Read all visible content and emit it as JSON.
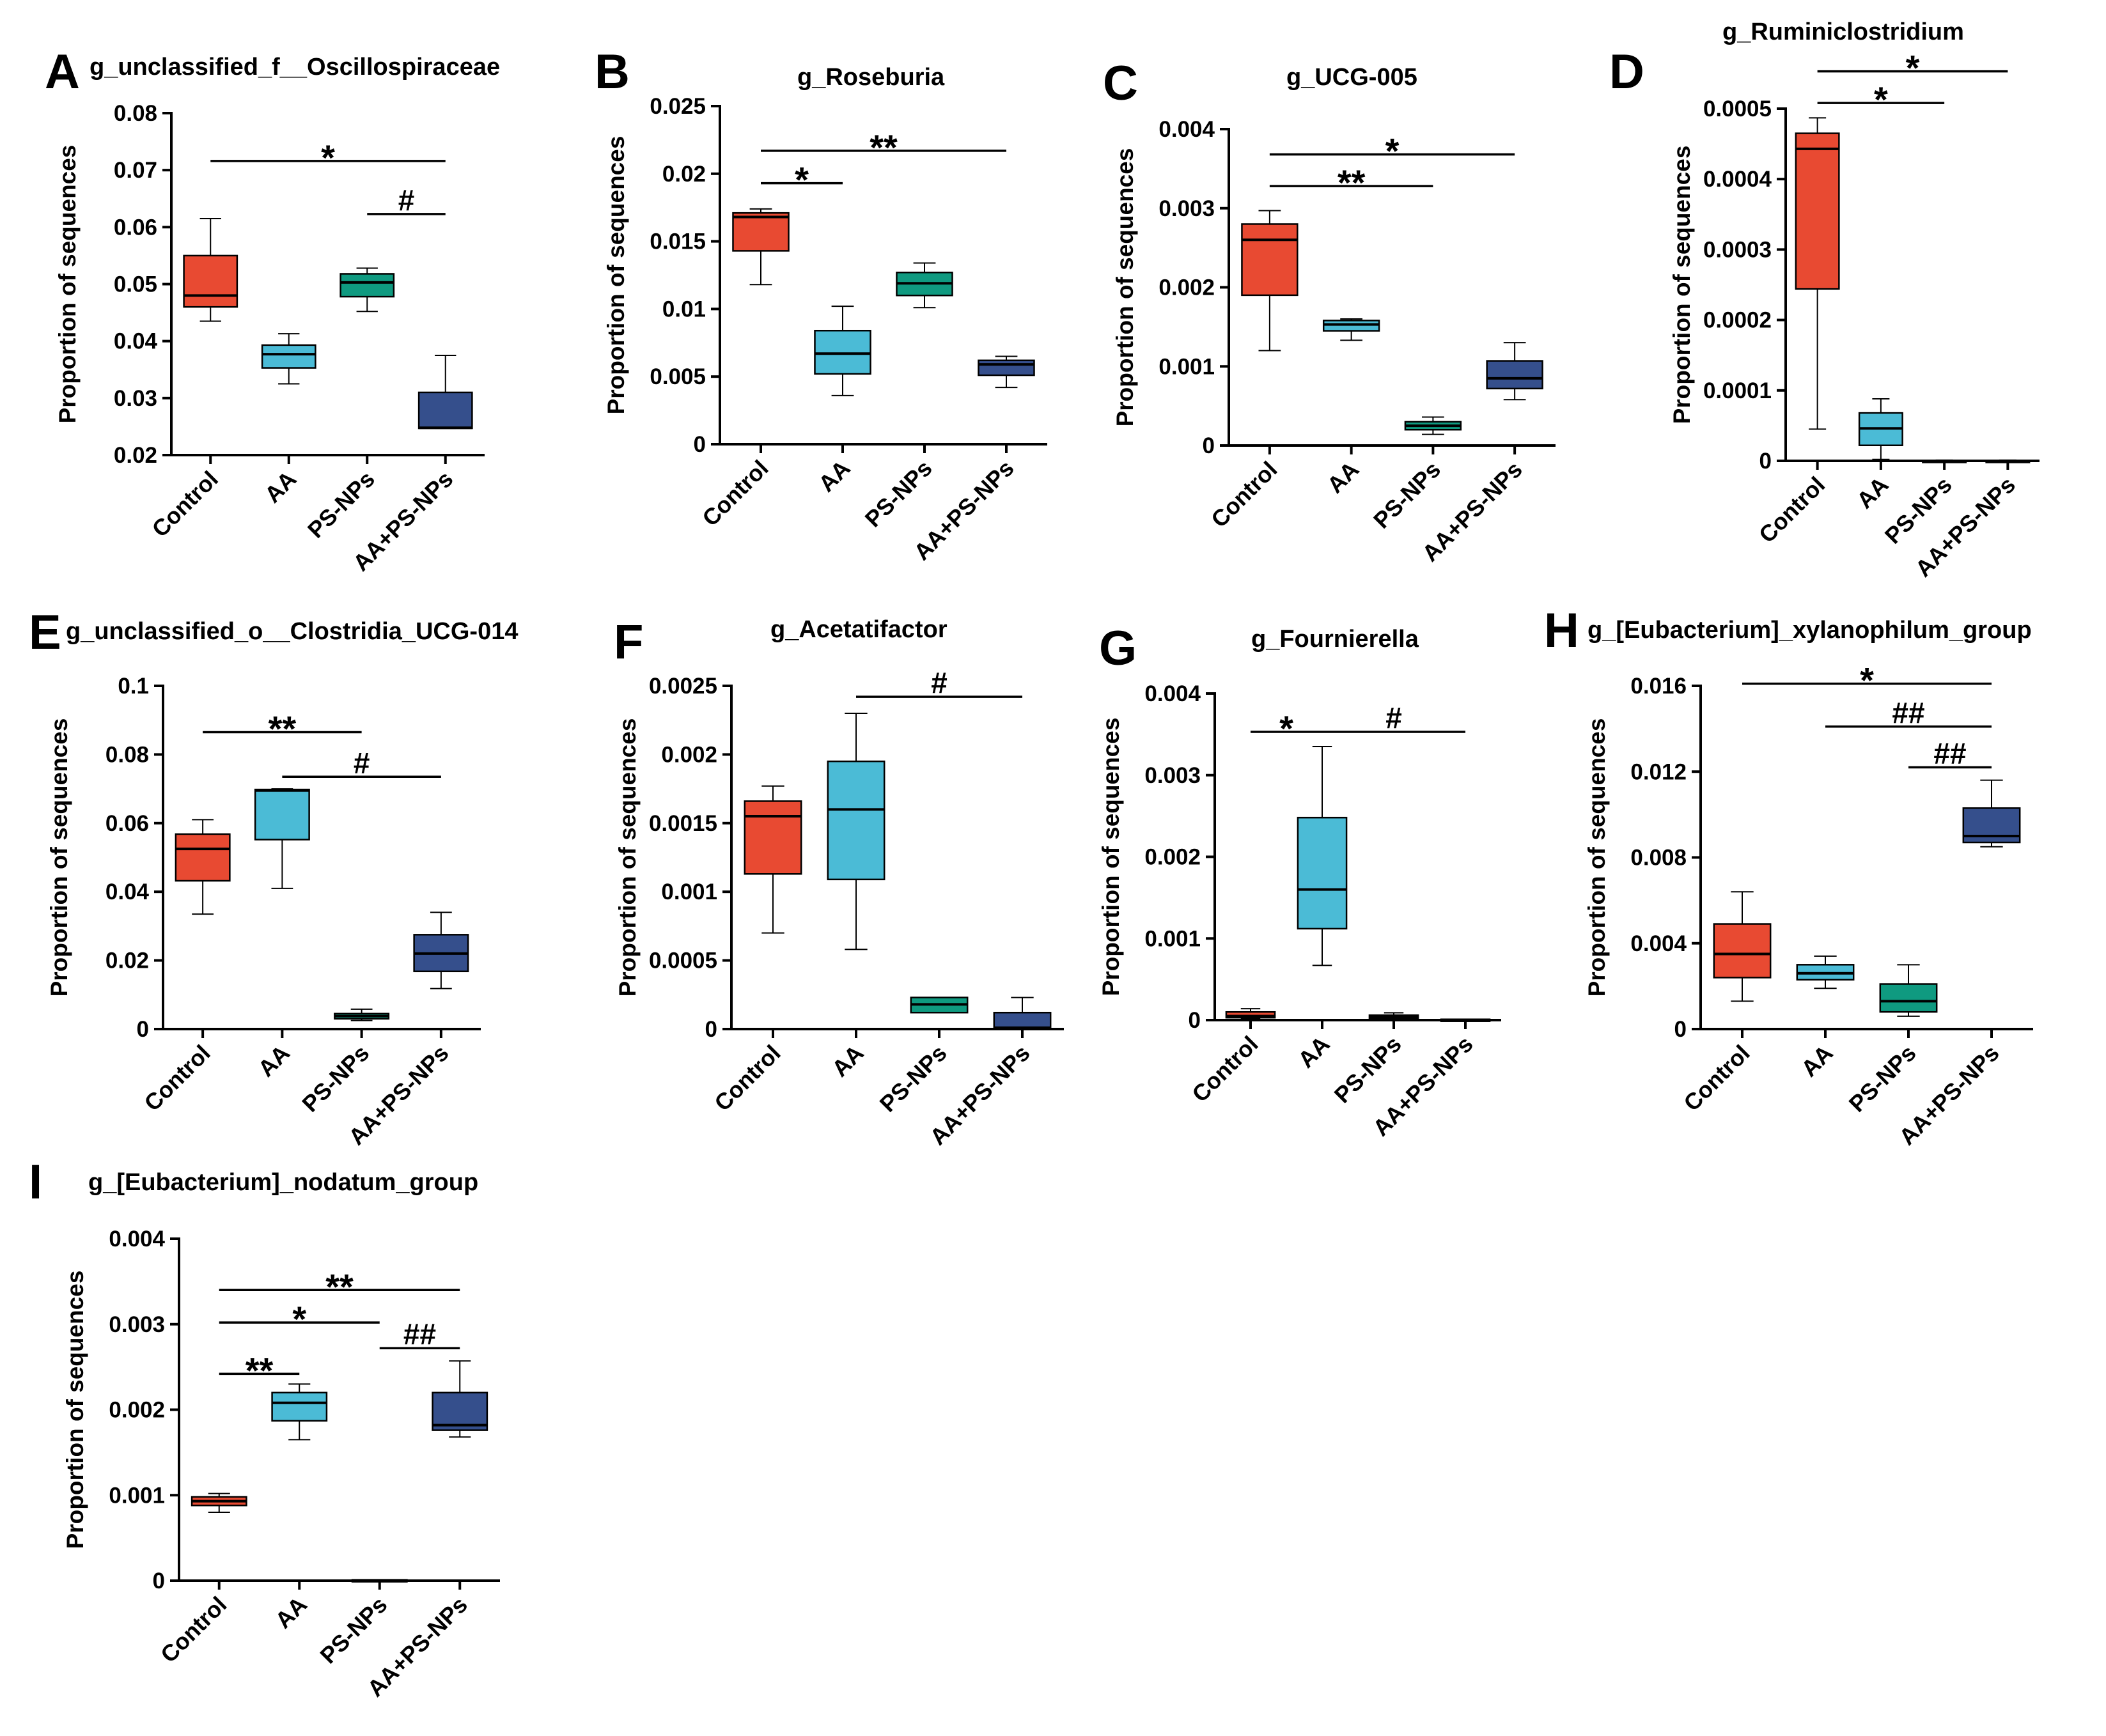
{
  "figure_colors": {
    "Control": "#e84a32",
    "AA": "#4bbbd6",
    "PS-NPs": "#0f9a80",
    "AA+PS-NPs": "#354f8c",
    "axis": "#000000"
  },
  "chart_data": [
    {
      "panel": "A",
      "type": "box",
      "title": "g_unclassified_f__Oscillospiraceae",
      "ylabel": "Proportion of sequences",
      "ylim": [
        0.02,
        0.08
      ],
      "yticks": [
        {
          "v": 0.02,
          "t": "0.02"
        },
        {
          "v": 0.03,
          "t": "0.03"
        },
        {
          "v": 0.04,
          "t": "0.04"
        },
        {
          "v": 0.05,
          "t": "0.05"
        },
        {
          "v": 0.06,
          "t": "0.06"
        },
        {
          "v": 0.07,
          "t": "0.07"
        },
        {
          "v": 0.08,
          "t": "0.08"
        }
      ],
      "categories": [
        "Control",
        "AA",
        "PS-NPs",
        "AA+PS-NPs"
      ],
      "boxes": [
        {
          "group": "Control",
          "min": 0.0435,
          "q1": 0.046,
          "median": 0.048,
          "q3": 0.055,
          "max": 0.0615
        },
        {
          "group": "AA",
          "min": 0.0325,
          "q1": 0.0353,
          "median": 0.0377,
          "q3": 0.0393,
          "max": 0.0413
        },
        {
          "group": "PS-NPs",
          "min": 0.0452,
          "q1": 0.0478,
          "median": 0.0503,
          "q3": 0.0518,
          "max": 0.0528
        },
        {
          "group": "AA+PS-NPs",
          "min": 0.0247,
          "q1": 0.0247,
          "median": 0.0248,
          "q3": 0.031,
          "max": 0.0375
        }
      ],
      "significance": [
        {
          "from": 0,
          "to": 3,
          "level": 0.0716,
          "label": "*"
        },
        {
          "from": 2,
          "to": 3,
          "level": 0.0623,
          "label": "#"
        }
      ]
    },
    {
      "panel": "B",
      "type": "box",
      "title": "g_Roseburia",
      "ylabel": "Proportion of sequences",
      "ylim": [
        0,
        0.025
      ],
      "yticks": [
        {
          "v": 0,
          "t": "0"
        },
        {
          "v": 0.005,
          "t": "0.005"
        },
        {
          "v": 0.01,
          "t": "0.01"
        },
        {
          "v": 0.015,
          "t": "0.015"
        },
        {
          "v": 0.02,
          "t": "0.02"
        },
        {
          "v": 0.025,
          "t": "0.025"
        }
      ],
      "categories": [
        "Control",
        "AA",
        "PS-NPs",
        "AA+PS-NPs"
      ],
      "boxes": [
        {
          "group": "Control",
          "min": 0.0118,
          "q1": 0.0143,
          "median": 0.0168,
          "q3": 0.0171,
          "max": 0.0174
        },
        {
          "group": "AA",
          "min": 0.0036,
          "q1": 0.0052,
          "median": 0.0067,
          "q3": 0.0084,
          "max": 0.0102
        },
        {
          "group": "PS-NPs",
          "min": 0.0101,
          "q1": 0.011,
          "median": 0.0119,
          "q3": 0.0127,
          "max": 0.0134
        },
        {
          "group": "AA+PS-NPs",
          "min": 0.0042,
          "q1": 0.0051,
          "median": 0.0059,
          "q3": 0.0062,
          "max": 0.0065
        }
      ],
      "significance": [
        {
          "from": 0,
          "to": 3,
          "level": 0.0217,
          "label": "**"
        },
        {
          "from": 0,
          "to": 1,
          "level": 0.0193,
          "label": "*"
        }
      ]
    },
    {
      "panel": "C",
      "type": "box",
      "title": "g_UCG-005",
      "ylabel": "Proportion of sequences",
      "ylim": [
        0,
        0.004
      ],
      "yticks": [
        {
          "v": 0,
          "t": "0"
        },
        {
          "v": 0.001,
          "t": "0.001"
        },
        {
          "v": 0.002,
          "t": "0.002"
        },
        {
          "v": 0.003,
          "t": "0.003"
        },
        {
          "v": 0.004,
          "t": "0.004"
        }
      ],
      "categories": [
        "Control",
        "AA",
        "PS-NPs",
        "AA+PS-NPs"
      ],
      "boxes": [
        {
          "group": "Control",
          "min": 0.0012,
          "q1": 0.0019,
          "median": 0.0026,
          "q3": 0.0028,
          "max": 0.00297
        },
        {
          "group": "AA",
          "min": 0.00133,
          "q1": 0.00145,
          "median": 0.00153,
          "q3": 0.00158,
          "max": 0.0016
        },
        {
          "group": "PS-NPs",
          "min": 0.00014,
          "q1": 0.0002,
          "median": 0.00025,
          "q3": 0.0003,
          "max": 0.00036
        },
        {
          "group": "AA+PS-NPs",
          "min": 0.00058,
          "q1": 0.00072,
          "median": 0.00085,
          "q3": 0.00107,
          "max": 0.0013
        }
      ],
      "significance": [
        {
          "from": 0,
          "to": 3,
          "level": 0.00368,
          "label": "*"
        },
        {
          "from": 0,
          "to": 2,
          "level": 0.00328,
          "label": "**"
        }
      ]
    },
    {
      "panel": "D",
      "type": "box",
      "title": "g_Ruminiclostridium",
      "ylabel": "Proportion of sequences",
      "ylim": [
        0,
        0.0005
      ],
      "yticks": [
        {
          "v": 0,
          "t": "0"
        },
        {
          "v": 0.0001,
          "t": "0.0001"
        },
        {
          "v": 0.0002,
          "t": "0.0002"
        },
        {
          "v": 0.0003,
          "t": "0.0003"
        },
        {
          "v": 0.0004,
          "t": "0.0004"
        },
        {
          "v": 0.0005,
          "t": "0.0005"
        }
      ],
      "categories": [
        "Control",
        "AA",
        "PS-NPs",
        "AA+PS-NPs"
      ],
      "boxes": [
        {
          "group": "Control",
          "min": 4.5e-05,
          "q1": 0.000244,
          "median": 0.000443,
          "q3": 0.000465,
          "max": 0.000487
        },
        {
          "group": "AA",
          "min": 2e-06,
          "q1": 2.2e-05,
          "median": 4.6e-05,
          "q3": 6.8e-05,
          "max": 8.8e-05
        },
        {
          "group": "PS-NPs",
          "min": 0,
          "q1": 0,
          "median": 0,
          "q3": 5e-07,
          "max": 1e-06
        },
        {
          "group": "AA+PS-NPs",
          "min": 0,
          "q1": 0,
          "median": 0,
          "q3": 5e-07,
          "max": 1e-06
        }
      ],
      "significance": [
        {
          "from": 0,
          "to": 3,
          "level": 0.000553,
          "label": "*"
        },
        {
          "from": 0,
          "to": 2,
          "level": 0.000508,
          "label": "*"
        }
      ]
    },
    {
      "panel": "E",
      "type": "box",
      "title": "g_unclassified_o__Clostridia_UCG-014",
      "ylabel": "Proportion of sequences",
      "ylim": [
        0,
        0.1
      ],
      "yticks": [
        {
          "v": 0,
          "t": "0"
        },
        {
          "v": 0.02,
          "t": "0.02"
        },
        {
          "v": 0.04,
          "t": "0.04"
        },
        {
          "v": 0.06,
          "t": "0.06"
        },
        {
          "v": 0.08,
          "t": "0.08"
        },
        {
          "v": 0.1,
          "t": "0.1"
        }
      ],
      "categories": [
        "Control",
        "AA",
        "PS-NPs",
        "AA+PS-NPs"
      ],
      "boxes": [
        {
          "group": "Control",
          "min": 0.0335,
          "q1": 0.0432,
          "median": 0.0525,
          "q3": 0.0568,
          "max": 0.061
        },
        {
          "group": "AA",
          "min": 0.041,
          "q1": 0.0552,
          "median": 0.0695,
          "q3": 0.0698,
          "max": 0.07
        },
        {
          "group": "PS-NPs",
          "min": 0.0025,
          "q1": 0.003,
          "median": 0.0038,
          "q3": 0.0045,
          "max": 0.0058
        },
        {
          "group": "AA+PS-NPs",
          "min": 0.0118,
          "q1": 0.0168,
          "median": 0.022,
          "q3": 0.0275,
          "max": 0.034
        }
      ],
      "significance": [
        {
          "from": 0,
          "to": 2,
          "level": 0.0865,
          "label": "**"
        },
        {
          "from": 1,
          "to": 3,
          "level": 0.0735,
          "label": "#"
        }
      ]
    },
    {
      "panel": "F",
      "type": "box",
      "title": "g_Acetatifactor",
      "ylabel": "Proportion of sequences",
      "ylim": [
        0,
        0.0025
      ],
      "yticks": [
        {
          "v": 0,
          "t": "0"
        },
        {
          "v": 0.0005,
          "t": "0.0005"
        },
        {
          "v": 0.001,
          "t": "0.001"
        },
        {
          "v": 0.0015,
          "t": "0.0015"
        },
        {
          "v": 0.002,
          "t": "0.002"
        },
        {
          "v": 0.0025,
          "t": "0.0025"
        }
      ],
      "categories": [
        "Control",
        "AA",
        "PS-NPs",
        "AA+PS-NPs"
      ],
      "boxes": [
        {
          "group": "Control",
          "min": 0.0007,
          "q1": 0.00113,
          "median": 0.00155,
          "q3": 0.00166,
          "max": 0.00177
        },
        {
          "group": "AA",
          "min": 0.00058,
          "q1": 0.00109,
          "median": 0.0016,
          "q3": 0.00195,
          "max": 0.0023
        },
        {
          "group": "PS-NPs",
          "min": 0.00012,
          "q1": 0.00012,
          "median": 0.00018,
          "q3": 0.00023,
          "max": 0.00023
        },
        {
          "group": "AA+PS-NPs",
          "min": 0,
          "q1": 0,
          "median": 1e-05,
          "q3": 0.00012,
          "max": 0.00023
        }
      ],
      "significance": [
        {
          "from": 1,
          "to": 3,
          "level": 0.00242,
          "label": "#"
        }
      ]
    },
    {
      "panel": "G",
      "type": "box",
      "title": "g_Fournierella",
      "ylabel": "Proportion of sequences",
      "ylim": [
        0,
        0.004
      ],
      "yticks": [
        {
          "v": 0,
          "t": "0"
        },
        {
          "v": 0.001,
          "t": "0.001"
        },
        {
          "v": 0.002,
          "t": "0.002"
        },
        {
          "v": 0.003,
          "t": "0.003"
        },
        {
          "v": 0.004,
          "t": "0.004"
        }
      ],
      "categories": [
        "Control",
        "AA",
        "PS-NPs",
        "AA+PS-NPs"
      ],
      "boxes": [
        {
          "group": "Control",
          "min": 2e-05,
          "q1": 3e-05,
          "median": 5e-05,
          "q3": 0.0001,
          "max": 0.00014
        },
        {
          "group": "AA",
          "min": 0.00067,
          "q1": 0.00112,
          "median": 0.0016,
          "q3": 0.00248,
          "max": 0.00335
        },
        {
          "group": "PS-NPs",
          "min": 1e-05,
          "q1": 2e-05,
          "median": 4e-05,
          "q3": 6e-05,
          "max": 9e-05
        },
        {
          "group": "AA+PS-NPs",
          "min": 0,
          "q1": 0,
          "median": 0,
          "q3": 1e-05,
          "max": 1e-05
        }
      ],
      "significance": [
        {
          "from": 0,
          "to": 1,
          "level": 0.00353,
          "label": "*"
        },
        {
          "from": 1,
          "to": 3,
          "level": 0.00353,
          "label": "#"
        }
      ]
    },
    {
      "panel": "H",
      "type": "box",
      "title": "g_[Eubacterium]_xylanophilum_group",
      "ylabel": "Proportion of sequences",
      "ylim": [
        0,
        0.016
      ],
      "yticks": [
        {
          "v": 0,
          "t": "0"
        },
        {
          "v": 0.004,
          "t": "0.004"
        },
        {
          "v": 0.008,
          "t": "0.008"
        },
        {
          "v": 0.012,
          "t": "0.012"
        },
        {
          "v": 0.016,
          "t": "0.016"
        }
      ],
      "categories": [
        "Control",
        "AA",
        "PS-NPs",
        "AA+PS-NPs"
      ],
      "boxes": [
        {
          "group": "Control",
          "min": 0.0013,
          "q1": 0.0024,
          "median": 0.0035,
          "q3": 0.0049,
          "max": 0.0064
        },
        {
          "group": "AA",
          "min": 0.0019,
          "q1": 0.0023,
          "median": 0.0026,
          "q3": 0.003,
          "max": 0.0034
        },
        {
          "group": "PS-NPs",
          "min": 0.0006,
          "q1": 0.0008,
          "median": 0.0013,
          "q3": 0.0021,
          "max": 0.003
        },
        {
          "group": "AA+PS-NPs",
          "min": 0.0085,
          "q1": 0.0087,
          "median": 0.009,
          "q3": 0.0103,
          "max": 0.0116
        }
      ],
      "significance": [
        {
          "from": 0,
          "to": 3,
          "level": 0.0161,
          "label": "*"
        },
        {
          "from": 1,
          "to": 3,
          "level": 0.0141,
          "label": "##"
        },
        {
          "from": 2,
          "to": 3,
          "level": 0.0122,
          "label": "##"
        }
      ]
    },
    {
      "panel": "I",
      "type": "box",
      "title": "g_[Eubacterium]_nodatum_group",
      "ylabel": "Proportion of sequences",
      "ylim": [
        0,
        0.004
      ],
      "yticks": [
        {
          "v": 0,
          "t": "0"
        },
        {
          "v": 0.001,
          "t": "0.001"
        },
        {
          "v": 0.002,
          "t": "0.002"
        },
        {
          "v": 0.003,
          "t": "0.003"
        },
        {
          "v": 0.004,
          "t": "0.004"
        }
      ],
      "categories": [
        "Control",
        "AA",
        "PS-NPs",
        "AA+PS-NPs"
      ],
      "boxes": [
        {
          "group": "Control",
          "min": 0.0008,
          "q1": 0.00088,
          "median": 0.00093,
          "q3": 0.00098,
          "max": 0.00102
        },
        {
          "group": "AA",
          "min": 0.00165,
          "q1": 0.00187,
          "median": 0.00208,
          "q3": 0.0022,
          "max": 0.0023
        },
        {
          "group": "PS-NPs",
          "min": 0,
          "q1": 0,
          "median": 0,
          "q3": 1e-05,
          "max": 1e-05
        },
        {
          "group": "AA+PS-NPs",
          "min": 0.00168,
          "q1": 0.00176,
          "median": 0.00182,
          "q3": 0.0022,
          "max": 0.00257
        }
      ],
      "significance": [
        {
          "from": 0,
          "to": 3,
          "level": 0.0034,
          "label": "**"
        },
        {
          "from": 0,
          "to": 2,
          "level": 0.00302,
          "label": "*"
        },
        {
          "from": 2,
          "to": 3,
          "level": 0.00272,
          "label": "##"
        },
        {
          "from": 0,
          "to": 1,
          "level": 0.00242,
          "label": "**"
        }
      ]
    }
  ]
}
